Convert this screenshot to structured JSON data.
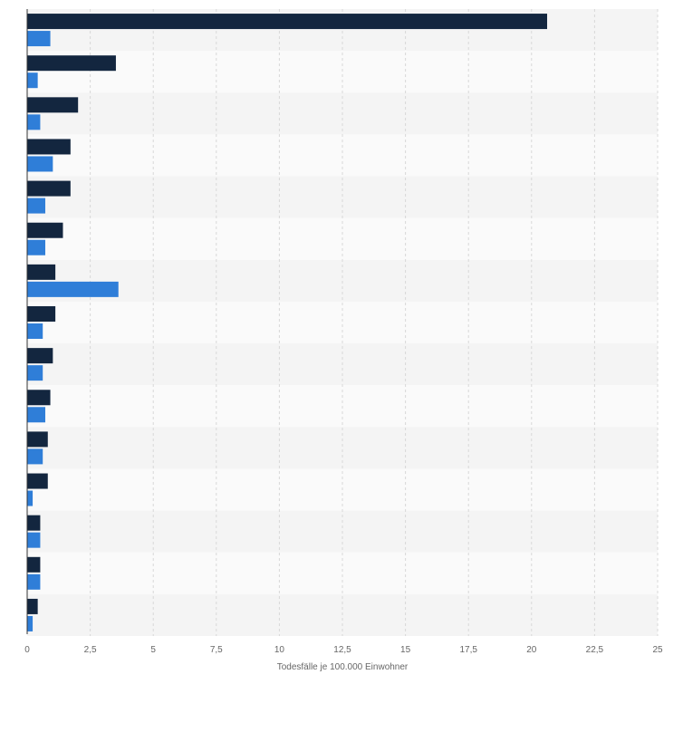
{
  "chart_data": {
    "type": "bar",
    "orientation": "horizontal",
    "title": "",
    "xlabel": "Todesfälle je 100.000 Einwohner",
    "ylabel": "",
    "xlim": [
      0,
      25
    ],
    "x_ticks": [
      0,
      2.5,
      5,
      7.5,
      10,
      12.5,
      15,
      17.5,
      20,
      22.5,
      25
    ],
    "tick_labels": [
      "0",
      "2,5",
      "5",
      "7,5",
      "10",
      "12,5",
      "15",
      "17,5",
      "20",
      "22,5",
      "25"
    ],
    "grid": true,
    "legend": "none",
    "series": [
      {
        "values": [
          20.6,
          3.5,
          2.0,
          1.7,
          1.7,
          1.4,
          1.1,
          1.1,
          1.0,
          0.9,
          0.8,
          0.8,
          0.5,
          0.5,
          0.4
        ]
      },
      {
        "values": [
          0.9,
          0.4,
          0.5,
          1.0,
          0.7,
          0.7,
          3.6,
          0.6,
          0.6,
          0.7,
          0.6,
          0.2,
          0.5,
          0.5,
          0.2
        ]
      }
    ],
    "colors": [
      "#13263f",
      "#2f7ed8"
    ],
    "band_colors": [
      "#f4f4f4",
      "#fafafa"
    ]
  }
}
